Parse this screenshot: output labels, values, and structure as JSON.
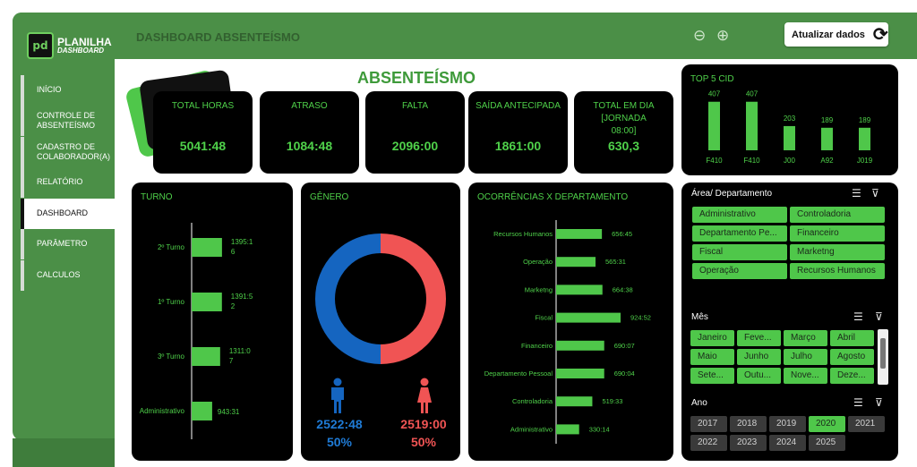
{
  "header": {
    "logo": {
      "line1": "PLANILHA",
      "line2": "DASHBOARD"
    },
    "page_title": "DASHBOARD ABSENTEÍSMO",
    "refresh_label": "Atualizar dados",
    "icons": [
      "zoom-out-icon",
      "zoom-in-icon",
      "refresh-icon"
    ]
  },
  "sidebar": {
    "items": [
      {
        "label": "INÍCIO",
        "active": false
      },
      {
        "label": "CONTROLE DE ABSENTEÍSMO",
        "active": false
      },
      {
        "label": "CADASTRO DE COLABORADOR(A)",
        "active": false
      },
      {
        "label": "RELATÓRIO",
        "active": false
      },
      {
        "label": "DASHBOARD",
        "active": true
      },
      {
        "label": "PARÂMETRO",
        "active": false
      },
      {
        "label": "CALCULOS",
        "active": false
      }
    ]
  },
  "main_title": "ABSENTEÍSMO",
  "kpis": [
    {
      "title": "TOTAL HORAS",
      "value": "5041:48"
    },
    {
      "title": "ATRASO",
      "value": "1084:48"
    },
    {
      "title": "FALTA",
      "value": "2096:00"
    },
    {
      "title": "SAÍDA ANTECIPADA",
      "value": "1861:00"
    },
    {
      "title": "TOTAL EM DIA [JORNADA 08:00]",
      "value": "630,3"
    }
  ],
  "colors": {
    "accent": "#4fc74a",
    "sidebar": "#4b8f47",
    "male": "#1565c0",
    "female": "#f05454",
    "panel": "#000000"
  },
  "charts": {
    "top5cid": {
      "title": "TOP 5 CID"
    },
    "turno": {
      "title": "TURNO"
    },
    "genero": {
      "title": "GÊNERO",
      "male_value": "2522:48",
      "male_pct": "50%",
      "female_value": "2519:00",
      "female_pct": "50%"
    },
    "ocorrencias": {
      "title": "OCORRÊNCIAS X DEPARTAMENTO"
    }
  },
  "chart_data": [
    {
      "type": "bar",
      "title": "TOP 5 CID",
      "categories": [
        "F410",
        "F410",
        "J00",
        "A92",
        "J019"
      ],
      "values": [
        407,
        407,
        203,
        189,
        189
      ],
      "labels": [
        "407",
        "407",
        "203",
        "189",
        "189"
      ]
    },
    {
      "type": "bar",
      "orientation": "horizontal",
      "title": "TURNO",
      "categories": [
        "2º Turno",
        "1º Turno",
        "3º Turno",
        "Administrativo"
      ],
      "values": [
        1395.27,
        1391.87,
        1311.12,
        943.52
      ],
      "labels": [
        "1395:16",
        "1391:52",
        "1311:07",
        "943:31"
      ]
    },
    {
      "type": "pie",
      "title": "GÊNERO",
      "categories": [
        "Masculino",
        "Feminino"
      ],
      "values": [
        50,
        50
      ]
    },
    {
      "type": "bar",
      "orientation": "horizontal",
      "title": "OCORRÊNCIAS X DEPARTAMENTO",
      "categories": [
        "Recursos Humanos",
        "Operação",
        "Marketng",
        "Fiscal",
        "Financeiro",
        "Departamento Pessoal",
        "Controladoria",
        "Administrativo"
      ],
      "values": [
        656.75,
        565.52,
        664.63,
        924.87,
        690.12,
        690.07,
        519.55,
        330.23
      ],
      "labels": [
        "656:45",
        "565:31",
        "664:38",
        "924:52",
        "690:07",
        "690:04",
        "519:33",
        "330:14"
      ]
    }
  ],
  "slicers": {
    "area": {
      "title": "Área/ Departamento",
      "items": [
        {
          "label": "Administrativo",
          "on": true
        },
        {
          "label": "Controladoria",
          "on": true
        },
        {
          "label": "Departamento Pe...",
          "on": true
        },
        {
          "label": "Financeiro",
          "on": true
        },
        {
          "label": "Fiscal",
          "on": true
        },
        {
          "label": "Marketng",
          "on": true
        },
        {
          "label": "Operação",
          "on": true
        },
        {
          "label": "Recursos Humanos",
          "on": true
        }
      ]
    },
    "mes": {
      "title": "Mês",
      "items": [
        {
          "label": "Janeiro",
          "on": true
        },
        {
          "label": "Feve...",
          "on": true
        },
        {
          "label": "Março",
          "on": true
        },
        {
          "label": "Abril",
          "on": true
        },
        {
          "label": "Maio",
          "on": true
        },
        {
          "label": "Junho",
          "on": true
        },
        {
          "label": "Julho",
          "on": true
        },
        {
          "label": "Agosto",
          "on": true
        },
        {
          "label": "Sete...",
          "on": true
        },
        {
          "label": "Outu...",
          "on": true
        },
        {
          "label": "Nove...",
          "on": true
        },
        {
          "label": "Deze...",
          "on": true
        }
      ]
    },
    "ano": {
      "title": "Ano",
      "items": [
        {
          "label": "2017",
          "on": false
        },
        {
          "label": "2018",
          "on": false
        },
        {
          "label": "2019",
          "on": false
        },
        {
          "label": "2020",
          "on": true
        },
        {
          "label": "2021",
          "on": false
        },
        {
          "label": "2022",
          "on": false
        },
        {
          "label": "2023",
          "on": false
        },
        {
          "label": "2024",
          "on": false
        },
        {
          "label": "2025",
          "on": false
        }
      ]
    }
  }
}
